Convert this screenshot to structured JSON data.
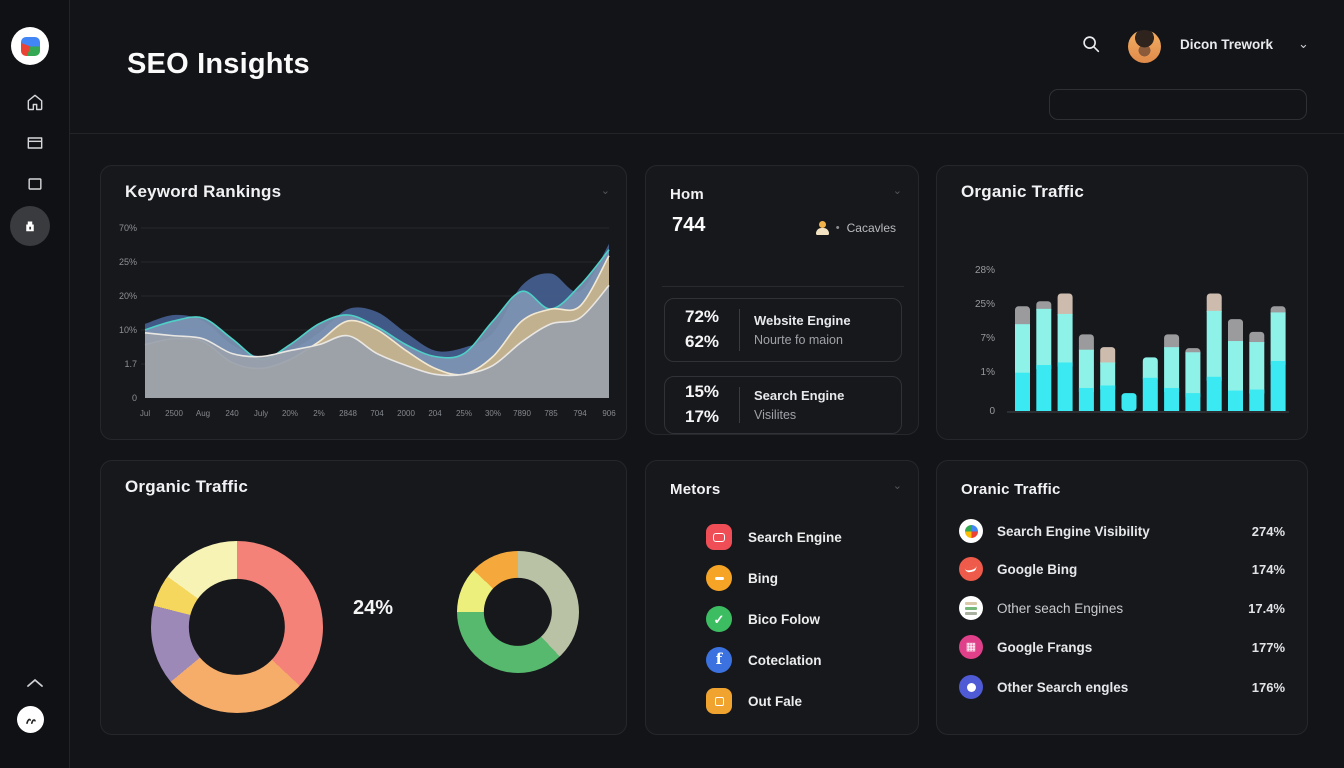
{
  "app": {
    "title": "SEO Insights"
  },
  "header": {
    "user_name": "Dicon Trework",
    "search_value": "",
    "search_placeholder": ""
  },
  "sidebar": {
    "items": [
      "home",
      "reports",
      "pages",
      "dashboard"
    ],
    "active_item": "dashboard"
  },
  "cards": {
    "keyword_rankings": {
      "title": "Keyword Rankings"
    },
    "hom": {
      "title": "Hom",
      "value": "744",
      "meta": "Cacavles",
      "stats": [
        {
          "p1": "72%",
          "p2": "62%",
          "l1": "Website Engine",
          "l2": "Nourte fo maion"
        },
        {
          "p1": "15%",
          "p2": "17%",
          "l1": "Search Engine",
          "l2": "Visilites"
        }
      ]
    },
    "organic_bar": {
      "title": "Organic Traffic"
    },
    "organic_donut": {
      "title": "Organic Traffic",
      "label": "24%"
    },
    "metors": {
      "title": "Metors",
      "items": [
        {
          "label": "Search Engine",
          "icon": "video-icon",
          "color": "#ef4e57",
          "shape": "rounded-square"
        },
        {
          "label": "Bing",
          "icon": "dash-icon",
          "color": "#f6a426",
          "shape": "circle"
        },
        {
          "label": "Bico Folow",
          "icon": "check-icon",
          "color": "#3dbd62",
          "shape": "circle"
        },
        {
          "label": "Coteclation",
          "icon": "facebook-icon",
          "color": "#3b72e0",
          "shape": "circle"
        },
        {
          "label": "Out Fale",
          "icon": "square-icon",
          "color": "#f0a32f",
          "shape": "rounded-square"
        }
      ]
    },
    "organic_list": {
      "title": "Oranic Traffic",
      "rows": [
        {
          "label": "Search Engine Visibility",
          "value": "274%",
          "icon": "google-pie-icon",
          "color": "#ffffff"
        },
        {
          "label": "Google Bing",
          "value": "174%",
          "icon": "swoosh-icon",
          "color": "#ef5b4a"
        },
        {
          "label": "Other seach Engines",
          "value": "17.4%",
          "icon": "stripes-icon",
          "color": "#ffffff"
        },
        {
          "label": "Google Frangs",
          "value": "177%",
          "icon": "grid-icon",
          "color": "#e0408a"
        },
        {
          "label": "Other Search engles",
          "value": "176%",
          "icon": "dot-icon",
          "color": "#4f5bd5"
        }
      ]
    }
  },
  "chart_data": [
    {
      "type": "area",
      "title": "Keyword Rankings",
      "x_labels": [
        "Jul",
        "2500",
        "Aug",
        "240",
        "July",
        "20%",
        "2%",
        "2848",
        "704",
        "2000",
        "204",
        "25%",
        "30%",
        "7890",
        "785",
        "794",
        "906"
      ],
      "y_labels": [
        "70%",
        "25%",
        "20%",
        "10%",
        "1.7",
        "0"
      ],
      "ylim": [
        0,
        75
      ],
      "grid": true,
      "series": [
        {
          "name": "dark-blue",
          "color": "#45608F",
          "stroke": null,
          "values": [
            25,
            28,
            26,
            18,
            14,
            16,
            22,
            30,
            29,
            22,
            16,
            17,
            22,
            38,
            42,
            36,
            52
          ]
        },
        {
          "name": "slate-blue",
          "color": "#7E95B5",
          "stroke": "#4FD0C7",
          "values": [
            23,
            26,
            27,
            20,
            13,
            18,
            25,
            28,
            24,
            18,
            14,
            15,
            26,
            36,
            30,
            38,
            50
          ]
        },
        {
          "name": "tan",
          "color": "#C9B48C",
          "stroke": "#F3E9D2",
          "values": [
            18,
            20,
            19,
            12,
            10,
            13,
            19,
            26,
            23,
            16,
            10,
            8,
            14,
            26,
            30,
            31,
            48
          ]
        },
        {
          "name": "gray",
          "color": "#9AA1AB",
          "stroke": "#E9E7E3",
          "values": [
            22,
            21,
            20,
            15,
            14,
            16,
            18,
            21,
            15,
            11,
            8,
            8,
            11,
            19,
            25,
            27,
            38
          ]
        }
      ]
    },
    {
      "type": "bar",
      "title": "Organic Traffic",
      "y_labels": [
        "28%",
        "25%",
        "7%",
        "1%",
        "0"
      ],
      "ylim": [
        0,
        28
      ],
      "segment_colors": {
        "bottom": "#3BE9F2",
        "middle": "#8EF2E9",
        "gray_cap": "#9B9B9D",
        "tan_cap": "#CDBCAE"
      },
      "bars": [
        {
          "bottom": 7.5,
          "middle": 9.5,
          "cap": 3.5,
          "cap_type": "gray"
        },
        {
          "bottom": 9.0,
          "middle": 11.0,
          "cap": 1.5,
          "cap_type": "gray"
        },
        {
          "bottom": 9.5,
          "middle": 9.5,
          "cap": 4.0,
          "cap_type": "tan"
        },
        {
          "bottom": 4.5,
          "middle": 7.5,
          "cap": 3.0,
          "cap_type": "gray"
        },
        {
          "bottom": 5.0,
          "middle": 4.5,
          "cap": 3.0,
          "cap_type": "tan"
        },
        {
          "bottom": 3.5,
          "middle": 0,
          "cap": 0,
          "cap_type": null
        },
        {
          "bottom": 6.5,
          "middle": 4.0,
          "cap": 0,
          "cap_type": null
        },
        {
          "bottom": 4.5,
          "middle": 8.0,
          "cap": 2.5,
          "cap_type": "gray"
        },
        {
          "bottom": 3.5,
          "middle": 8.0,
          "cap": 0.8,
          "cap_type": "gray"
        },
        {
          "bottom": 6.7,
          "middle": 12.9,
          "cap": 3.4,
          "cap_type": "tan"
        },
        {
          "bottom": 4.0,
          "middle": 9.7,
          "cap": 4.3,
          "cap_type": "gray"
        },
        {
          "bottom": 4.2,
          "middle": 9.3,
          "cap": 2.0,
          "cap_type": "gray"
        },
        {
          "bottom": 9.8,
          "middle": 9.5,
          "cap": 1.2,
          "cap_type": "gray"
        }
      ]
    },
    {
      "type": "pie",
      "name": "organic-traffic-donut-large",
      "label": "24%",
      "slices": [
        {
          "color": "#F58278",
          "value": 37
        },
        {
          "color": "#F6AD6A",
          "value": 27
        },
        {
          "color": "#9C89B8",
          "value": 15
        },
        {
          "color": "#F6D75E",
          "value": 6
        },
        {
          "color": "#F7F3B5",
          "value": 15
        }
      ]
    },
    {
      "type": "pie",
      "name": "organic-traffic-donut-small",
      "slices": [
        {
          "color": "#B9C2A4",
          "value": 38
        },
        {
          "color": "#56B96D",
          "value": 37
        },
        {
          "color": "#EDEF7D",
          "value": 12
        },
        {
          "color": "#F5A93D",
          "value": 13
        }
      ]
    }
  ]
}
